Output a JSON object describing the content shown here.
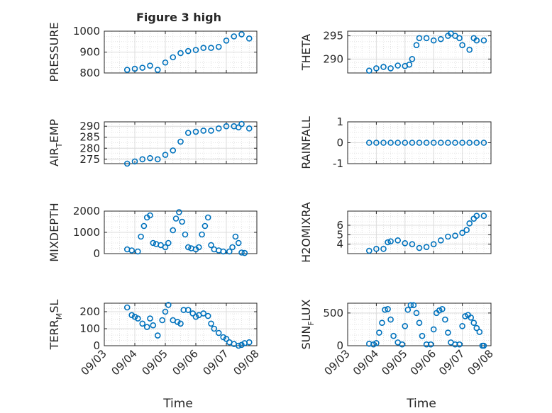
{
  "figure": {
    "title": "Figure 3 high",
    "xlabel_left": "Time",
    "xlabel_right": "Time"
  },
  "colors": {
    "marker": "#0072BD",
    "axis": "#262626",
    "grid": "#dcdcdc"
  },
  "x_ticks": [
    "09/03",
    "09/04",
    "09/05",
    "09/06",
    "09/07",
    "09/08"
  ],
  "chart_data": [
    {
      "type": "scatter",
      "ylabel": "PRESSURE",
      "ylim": [
        800,
        1000
      ],
      "yticks": [
        800,
        900,
        1000
      ],
      "xlim": [
        "09/03",
        "09/08"
      ],
      "grid": true,
      "x": [
        3.75,
        4.0,
        4.25,
        4.5,
        4.75,
        5.0,
        5.25,
        5.5,
        5.75,
        6.0,
        6.25,
        6.5,
        6.75,
        7.0,
        7.25,
        7.5,
        7.75
      ],
      "y": [
        815,
        820,
        825,
        835,
        815,
        850,
        875,
        895,
        905,
        910,
        920,
        920,
        925,
        955,
        975,
        985,
        965
      ]
    },
    {
      "type": "scatter",
      "ylabel": "THETA",
      "ylim": [
        287,
        296
      ],
      "yticks": [
        290,
        295
      ],
      "xlim": [
        "09/03",
        "09/08"
      ],
      "grid": true,
      "x": [
        3.75,
        4.0,
        4.25,
        4.5,
        4.75,
        5.0,
        5.15,
        5.25,
        5.4,
        5.5,
        5.75,
        6.0,
        6.25,
        6.5,
        6.6,
        6.75,
        6.9,
        7.0,
        7.25,
        7.4,
        7.5,
        7.75
      ],
      "y": [
        287.5,
        288,
        288.3,
        288,
        288.6,
        288.5,
        288.8,
        290,
        293,
        294.5,
        294.5,
        294,
        294.3,
        295,
        295.5,
        295,
        294.5,
        293,
        292,
        294.5,
        294,
        294
      ]
    },
    {
      "type": "scatter",
      "ylabel": "AIR_TEMP",
      "ylim": [
        273,
        292
      ],
      "yticks": [
        275,
        280,
        285,
        290
      ],
      "xlim": [
        "09/03",
        "09/08"
      ],
      "grid": true,
      "x": [
        3.75,
        4.0,
        4.25,
        4.5,
        4.75,
        5.0,
        5.25,
        5.5,
        5.75,
        6.0,
        6.25,
        6.5,
        6.75,
        7.0,
        7.25,
        7.4,
        7.5,
        7.75
      ],
      "y": [
        273,
        274,
        275,
        275.5,
        275,
        277,
        279,
        283,
        287,
        287.5,
        288,
        288,
        289,
        290,
        290,
        289.5,
        291,
        289
      ]
    },
    {
      "type": "scatter",
      "ylabel": "RAINFALL",
      "ylim": [
        -1,
        1
      ],
      "yticks": [
        -1,
        0,
        1
      ],
      "xlim": [
        "09/03",
        "09/08"
      ],
      "grid": true,
      "x": [
        3.75,
        4.0,
        4.25,
        4.5,
        4.75,
        5.0,
        5.25,
        5.5,
        5.75,
        6.0,
        6.25,
        6.5,
        6.75,
        7.0,
        7.25,
        7.5,
        7.75
      ],
      "y": [
        0,
        0,
        0,
        0,
        0,
        0,
        0,
        0,
        0,
        0,
        0,
        0,
        0,
        0,
        0,
        0,
        0
      ]
    },
    {
      "type": "scatter",
      "ylabel": "MIXDEPTH",
      "ylim": [
        0,
        2000
      ],
      "yticks": [
        0,
        1000,
        2000
      ],
      "xlim": [
        "09/03",
        "09/08"
      ],
      "grid": true,
      "x": [
        3.75,
        3.9,
        4.1,
        4.2,
        4.3,
        4.4,
        4.5,
        4.6,
        4.7,
        4.85,
        5.0,
        5.1,
        5.25,
        5.35,
        5.45,
        5.55,
        5.65,
        5.75,
        5.85,
        6.0,
        6.1,
        6.2,
        6.3,
        6.4,
        6.5,
        6.6,
        6.75,
        6.9,
        7.1,
        7.2,
        7.3,
        7.4,
        7.5,
        7.6
      ],
      "y": [
        200,
        150,
        100,
        800,
        1300,
        1700,
        1800,
        500,
        450,
        400,
        300,
        500,
        1100,
        1650,
        1950,
        1500,
        900,
        300,
        250,
        200,
        300,
        900,
        1300,
        1700,
        400,
        200,
        150,
        100,
        100,
        300,
        800,
        500,
        50,
        30
      ]
    },
    {
      "type": "scatter",
      "ylabel": "H2OMIXRA",
      "ylim": [
        3,
        7.5
      ],
      "yticks": [
        4,
        5,
        6
      ],
      "xlim": [
        "09/03",
        "09/08"
      ],
      "grid": true,
      "x": [
        3.75,
        4.0,
        4.25,
        4.4,
        4.5,
        4.75,
        5.0,
        5.25,
        5.5,
        5.75,
        6.0,
        6.25,
        6.5,
        6.75,
        7.0,
        7.15,
        7.25,
        7.4,
        7.5,
        7.75
      ],
      "y": [
        3.3,
        3.5,
        3.5,
        4.2,
        4.3,
        4.4,
        4.1,
        4.0,
        3.6,
        3.7,
        4.0,
        4.4,
        4.8,
        4.9,
        5.2,
        5.5,
        6.2,
        6.7,
        7.0,
        7.0
      ]
    },
    {
      "type": "scatter",
      "ylabel": "TERR_MSL",
      "ylim": [
        0,
        250
      ],
      "yticks": [
        0,
        100,
        200
      ],
      "xlim": [
        "09/03",
        "09/08"
      ],
      "grid": true,
      "x": [
        3.75,
        3.9,
        4.0,
        4.1,
        4.25,
        4.4,
        4.5,
        4.6,
        4.75,
        4.9,
        5.0,
        5.1,
        5.25,
        5.4,
        5.5,
        5.6,
        5.75,
        5.9,
        6.0,
        6.1,
        6.25,
        6.4,
        6.5,
        6.6,
        6.75,
        6.9,
        7.0,
        7.1,
        7.25,
        7.4,
        7.5,
        7.6,
        7.75
      ],
      "y": [
        225,
        180,
        170,
        160,
        130,
        110,
        160,
        120,
        60,
        150,
        200,
        240,
        150,
        140,
        130,
        210,
        210,
        190,
        170,
        180,
        190,
        175,
        130,
        100,
        75,
        50,
        40,
        20,
        10,
        0,
        5,
        15,
        20
      ]
    },
    {
      "type": "scatter",
      "ylabel": "SUN_FLUX",
      "ylim": [
        0,
        650
      ],
      "yticks": [
        0,
        500
      ],
      "xlim": [
        "09/03",
        "09/08"
      ],
      "grid": true,
      "x": [
        3.75,
        3.9,
        4.0,
        4.1,
        4.2,
        4.3,
        4.4,
        4.5,
        4.6,
        4.75,
        4.9,
        5.0,
        5.1,
        5.2,
        5.3,
        5.4,
        5.5,
        5.6,
        5.75,
        5.9,
        6.0,
        6.1,
        6.2,
        6.3,
        6.4,
        6.5,
        6.6,
        6.75,
        6.9,
        7.0,
        7.1,
        7.2,
        7.3,
        7.4,
        7.5,
        7.6,
        7.7,
        7.75
      ],
      "y": [
        30,
        20,
        40,
        200,
        350,
        550,
        560,
        400,
        150,
        50,
        20,
        300,
        550,
        620,
        620,
        500,
        350,
        150,
        20,
        20,
        250,
        500,
        540,
        560,
        400,
        200,
        50,
        20,
        20,
        300,
        450,
        470,
        430,
        350,
        270,
        210,
        0,
        0
      ]
    }
  ]
}
